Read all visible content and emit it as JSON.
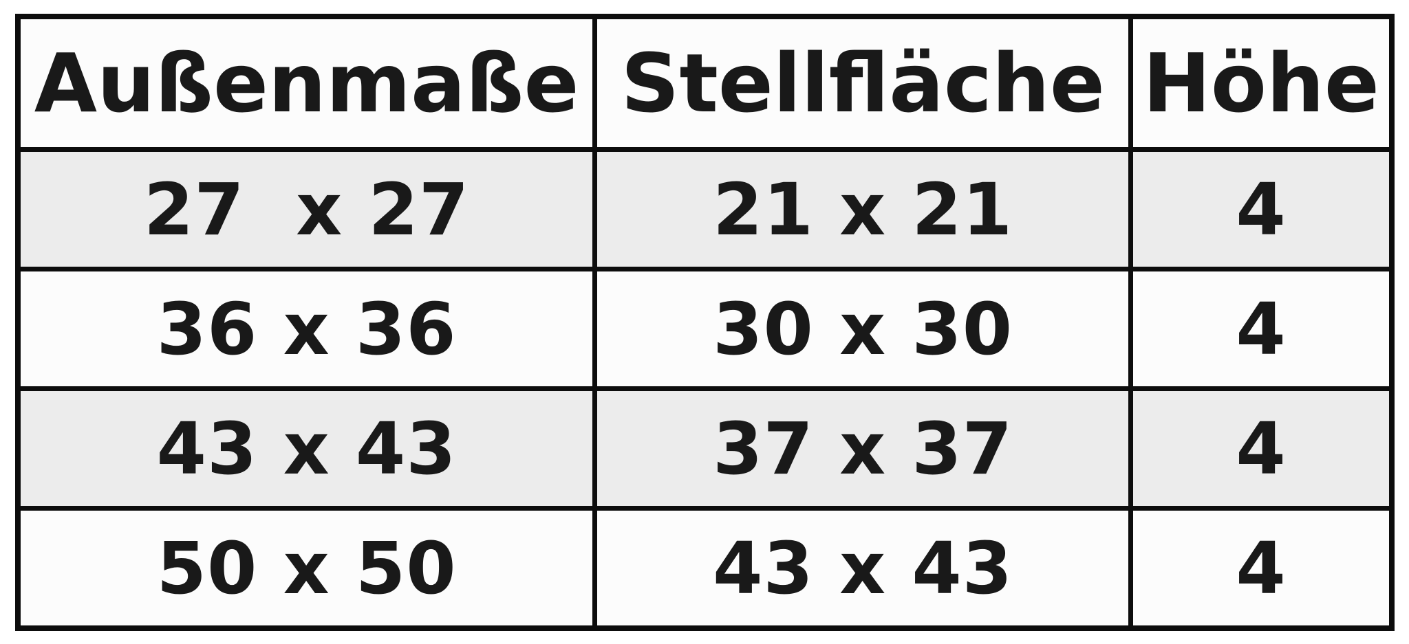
{
  "table": {
    "headers": [
      "Außenmaße",
      "Stellfläche",
      "Höhe"
    ],
    "rows": [
      [
        "27  x 27",
        "21 x 21",
        "4"
      ],
      [
        "36 x 36",
        "30 x 30",
        "4"
      ],
      [
        "43 x 43",
        "37 x 37",
        "4"
      ],
      [
        "50 x 50",
        "43 x 43",
        "4"
      ]
    ]
  },
  "colors": {
    "border": "#0d0d0d",
    "row_shaded": "#ececec",
    "row_plain": "#fcfcfc",
    "header_background": "#fcfcfc",
    "text": "#191919",
    "page_background": "#ffffff"
  }
}
